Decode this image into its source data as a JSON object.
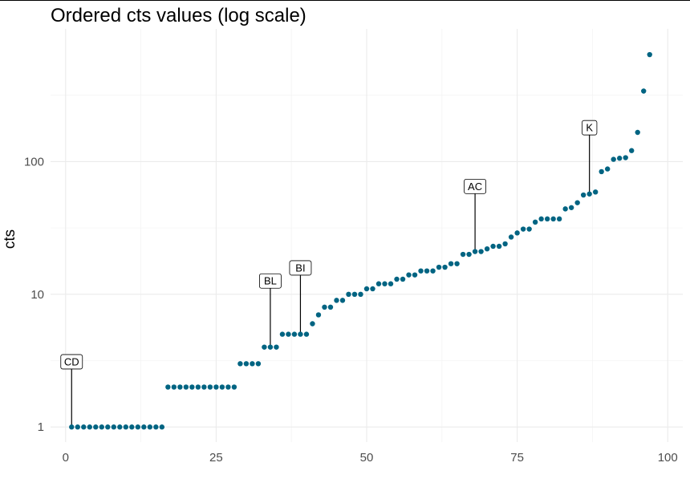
{
  "chart_data": {
    "type": "scatter",
    "title": "Ordered cts values (log scale)",
    "xlabel": "",
    "ylabel": "cts",
    "y_scale": "log10",
    "xlim": [
      -2.5,
      102.5
    ],
    "ylim": [
      0.77,
      1000
    ],
    "x_ticks": [
      0,
      25,
      50,
      75,
      100
    ],
    "x_tick_labels": [
      "0",
      "25",
      "50",
      "75",
      "100"
    ],
    "y_ticks": [
      1,
      10,
      100
    ],
    "y_tick_labels": [
      "1",
      "10",
      "100"
    ],
    "grid": true,
    "point_color": "#006482",
    "x": [
      1,
      2,
      3,
      4,
      5,
      6,
      7,
      8,
      9,
      10,
      11,
      12,
      13,
      14,
      15,
      16,
      17,
      18,
      19,
      20,
      21,
      22,
      23,
      24,
      25,
      26,
      27,
      28,
      29,
      30,
      31,
      32,
      33,
      34,
      35,
      36,
      37,
      38,
      39,
      40,
      41,
      42,
      43,
      44,
      45,
      46,
      47,
      48,
      49,
      50,
      51,
      52,
      53,
      54,
      55,
      56,
      57,
      58,
      59,
      60,
      61,
      62,
      63,
      64,
      65,
      66,
      67,
      68,
      69,
      70,
      71,
      72,
      73,
      74,
      75,
      76,
      77,
      78,
      79,
      80,
      81,
      82,
      83,
      84,
      85,
      86,
      87,
      88,
      89,
      90,
      91,
      92,
      93,
      94,
      95,
      96,
      97
    ],
    "y": [
      1,
      1,
      1,
      1,
      1,
      1,
      1,
      1,
      1,
      1,
      1,
      1,
      1,
      1,
      1,
      1,
      2,
      2,
      2,
      2,
      2,
      2,
      2,
      2,
      2,
      2,
      2,
      2,
      3,
      3,
      3,
      3,
      4,
      4,
      4,
      5,
      5,
      5,
      5,
      5,
      6,
      7,
      8,
      8,
      9,
      9,
      10,
      10,
      10,
      11,
      11,
      12,
      12,
      12,
      13,
      13,
      14,
      14,
      15,
      15,
      15,
      16,
      16,
      17,
      17,
      20,
      20,
      21,
      21,
      22,
      23,
      23,
      24,
      27,
      29,
      31,
      31,
      35,
      37,
      37,
      37,
      37,
      44,
      45,
      49,
      56,
      57,
      59,
      84,
      88,
      104,
      106,
      107,
      121,
      166,
      340,
      640
    ],
    "annotations": [
      {
        "label": "CD",
        "x": 1,
        "y": 1,
        "label_y": 3.1
      },
      {
        "label": "BL",
        "x": 34,
        "y": 4,
        "label_y": 12.6
      },
      {
        "label": "BI",
        "x": 39,
        "y": 5,
        "label_y": 15.8
      },
      {
        "label": "AC",
        "x": 68,
        "y": 21,
        "label_y": 65
      },
      {
        "label": "K",
        "x": 87,
        "y": 57,
        "label_y": 180
      }
    ]
  }
}
